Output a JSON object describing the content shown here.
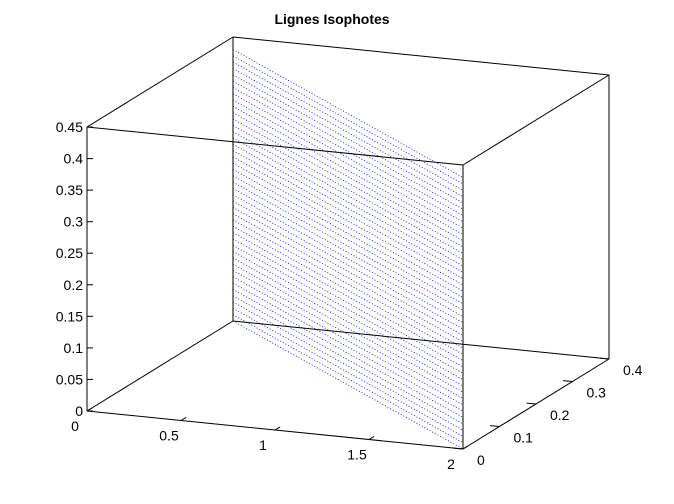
{
  "chart_data": {
    "type": "3d-line",
    "title": "Lignes Isophotes",
    "xlabel": "",
    "ylabel": "",
    "zlabel": "",
    "xlim": [
      0,
      2
    ],
    "ylim": [
      0,
      0.4
    ],
    "zlim": [
      0,
      0.45
    ],
    "x_ticks": [
      "0",
      "0.5",
      "1",
      "1.5",
      "2"
    ],
    "y_ticks": [
      "0",
      "0.1",
      "0.2",
      "0.3",
      "0.4"
    ],
    "z_ticks": [
      "0",
      "0.05",
      "0.1",
      "0.15",
      "0.2",
      "0.25",
      "0.3",
      "0.35",
      "0.4",
      "0.45"
    ],
    "series": [
      {
        "style": "dotted",
        "color": "#0000ff",
        "levels_count": 44,
        "z_range": [
          0,
          0.43
        ],
        "x_range": [
          0,
          2
        ],
        "y_range": [
          0,
          0.4
        ]
      }
    ],
    "box": true,
    "grid": false
  }
}
